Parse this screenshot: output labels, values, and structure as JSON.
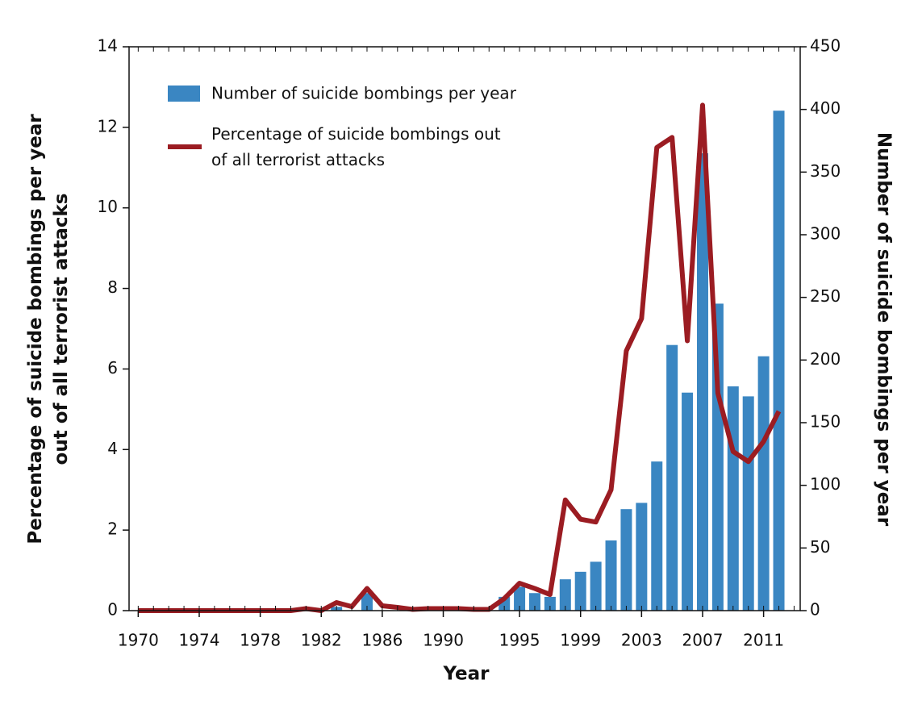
{
  "chart_data": {
    "type": "bar_line",
    "xlabel": "Year",
    "ylabel": "Percentage of suicide bombings per year out of all terrorist attacks",
    "y2label": "Number of suicide bombings per year",
    "x": [
      1970,
      1971,
      1972,
      1973,
      1974,
      1975,
      1976,
      1977,
      1978,
      1979,
      1980,
      1981,
      1982,
      1983,
      1984,
      1985,
      1986,
      1987,
      1988,
      1989,
      1990,
      1991,
      1992,
      1993,
      1994,
      1995,
      1996,
      1997,
      1998,
      1999,
      2000,
      2001,
      2002,
      2003,
      2004,
      2005,
      2006,
      2007,
      2008,
      2009,
      2010,
      2011,
      2012
    ],
    "series": [
      {
        "name": "Number of suicide bombings per year",
        "kind": "bar",
        "axis": "y2",
        "color": "#3a86c2",
        "values": [
          0,
          0,
          0,
          0,
          0,
          0,
          0,
          0,
          0,
          0,
          0,
          0,
          0,
          3,
          0,
          14,
          0,
          0,
          0,
          0,
          0,
          0,
          0,
          0,
          11,
          19,
          14,
          11,
          25,
          31,
          39,
          56,
          81,
          86,
          119,
          212,
          174,
          365,
          245,
          179,
          171,
          203,
          399
        ]
      },
      {
        "name": "Percentage of suicide bombings out of all terrorist attacks",
        "kind": "line",
        "color": "#9b1c22",
        "values": [
          0,
          0,
          0,
          0,
          0,
          0,
          0,
          0,
          0,
          0,
          0,
          0.05,
          0,
          0.2,
          0.1,
          0.55,
          0.12,
          0.08,
          0.03,
          0.05,
          0.05,
          0.05,
          0.03,
          0.03,
          0.3,
          0.68,
          0.55,
          0.4,
          2.75,
          2.27,
          2.2,
          3.0,
          6.45,
          7.25,
          11.5,
          11.75,
          6.7,
          12.55,
          5.4,
          3.95,
          3.7,
          4.2,
          4.95
        ]
      }
    ],
    "xlim": [
      1969.4,
      2013.4
    ],
    "xticks": [
      1970,
      1974,
      1978,
      1982,
      1986,
      1990,
      1995,
      1999,
      2003,
      2007,
      2011
    ],
    "ylim": [
      0,
      14
    ],
    "yticks": [
      0,
      2,
      4,
      6,
      8,
      10,
      12,
      14
    ],
    "y2lim": [
      0,
      450
    ],
    "y2ticks": [
      0,
      50,
      100,
      150,
      200,
      250,
      300,
      350,
      400,
      450
    ],
    "legend": "upper-left"
  }
}
